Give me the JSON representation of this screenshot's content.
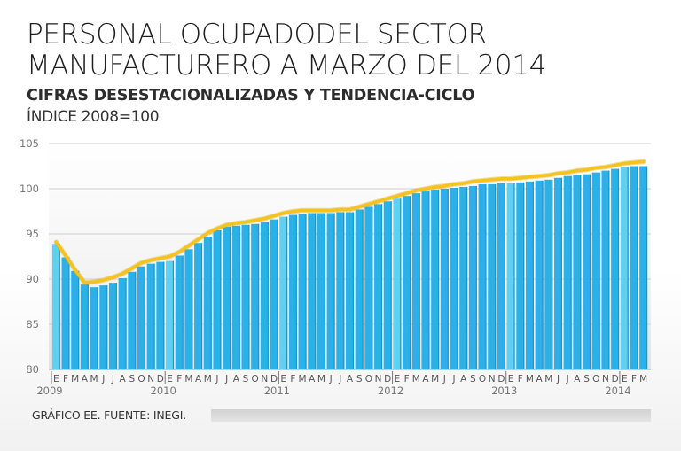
{
  "header": {
    "title_line1": "PERSONAL OCUPADODEL SECTOR",
    "title_line2": "MANUFACTURERO A MARZO DEL 2014",
    "subtitle": "CIFRAS DESESTACIONALIZADAS Y TENDENCIA-CICLO",
    "index_note": "ÍNDICE 2008=100"
  },
  "footer": {
    "source": "GRÁFICO EE. FUENTE: INEGI."
  },
  "colors": {
    "bar": "#2bb1e7",
    "bar_highlight": "#5fd0f3",
    "bar_shadow": "#1997cf",
    "trend": "#f6c21e"
  },
  "chart_data": {
    "type": "bar",
    "ylim": [
      80,
      105
    ],
    "yticks": [
      80,
      85,
      90,
      95,
      100,
      105
    ],
    "grid": true,
    "categories": [
      "E",
      "F",
      "M",
      "A",
      "M",
      "J",
      "J",
      "A",
      "S",
      "O",
      "N",
      "D",
      "E",
      "F",
      "M",
      "A",
      "M",
      "J",
      "J",
      "A",
      "S",
      "O",
      "N",
      "D",
      "E",
      "F",
      "M",
      "A",
      "M",
      "J",
      "J",
      "A",
      "S",
      "O",
      "N",
      "D",
      "E",
      "F",
      "M",
      "A",
      "M",
      "J",
      "J",
      "A",
      "S",
      "O",
      "N",
      "D",
      "E",
      "F",
      "M",
      "A",
      "M",
      "J",
      "J",
      "A",
      "S",
      "O",
      "N",
      "D",
      "E",
      "F",
      "M"
    ],
    "years": [
      {
        "label": "2009",
        "index": 0
      },
      {
        "label": "2010",
        "index": 12
      },
      {
        "label": "2011",
        "index": 24
      },
      {
        "label": "2012",
        "index": 36
      },
      {
        "label": "2013",
        "index": 48
      },
      {
        "label": "2014",
        "index": 60
      }
    ],
    "series": [
      {
        "type": "bar",
        "values": [
          93.9,
          92.4,
          90.9,
          89.4,
          89.1,
          89.3,
          89.6,
          90.1,
          90.8,
          91.4,
          91.7,
          91.9,
          92.0,
          92.6,
          93.3,
          94.0,
          94.7,
          95.4,
          95.8,
          95.9,
          96.0,
          96.1,
          96.3,
          96.6,
          96.9,
          97.1,
          97.2,
          97.3,
          97.3,
          97.3,
          97.4,
          97.4,
          97.7,
          98.0,
          98.3,
          98.6,
          98.9,
          99.2,
          99.5,
          99.7,
          99.9,
          100.0,
          100.1,
          100.2,
          100.3,
          100.5,
          100.5,
          100.6,
          100.6,
          100.7,
          100.8,
          100.9,
          101.0,
          101.2,
          101.4,
          101.5,
          101.6,
          101.8,
          102.0,
          102.2,
          102.4,
          102.5,
          102.5
        ]
      },
      {
        "type": "line",
        "values": [
          94.1,
          92.6,
          91.0,
          89.6,
          89.7,
          89.9,
          90.2,
          90.6,
          91.2,
          91.8,
          92.1,
          92.3,
          92.5,
          93.0,
          93.7,
          94.4,
          95.1,
          95.6,
          96.0,
          96.2,
          96.3,
          96.5,
          96.7,
          97.0,
          97.3,
          97.5,
          97.6,
          97.6,
          97.6,
          97.6,
          97.7,
          97.7,
          98.0,
          98.3,
          98.6,
          98.9,
          99.2,
          99.5,
          99.8,
          100.0,
          100.2,
          100.3,
          100.5,
          100.6,
          100.8,
          100.9,
          101.0,
          101.1,
          101.1,
          101.2,
          101.3,
          101.4,
          101.5,
          101.7,
          101.8,
          102.0,
          102.1,
          102.3,
          102.4,
          102.6,
          102.8,
          102.9,
          103.0
        ]
      }
    ]
  }
}
